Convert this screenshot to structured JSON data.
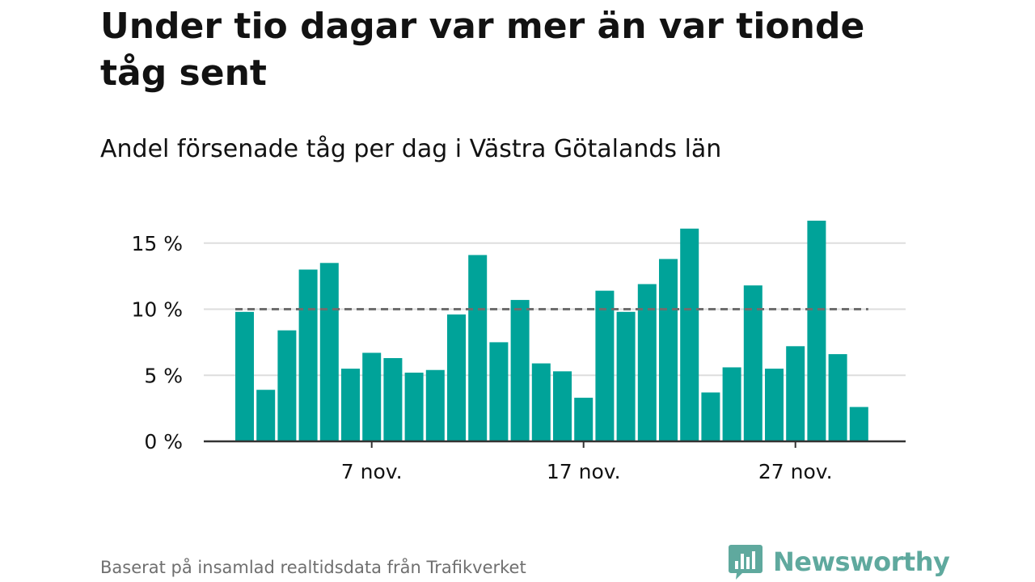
{
  "title": "Under tio dagar var mer än var tionde tåg sent",
  "subtitle": "Andel försenade tåg per dag i Västra Götalands län",
  "footer": {
    "source": "Baserat på insamlad realtidsdata från Trafikverket",
    "brand": "Newsworthy",
    "brand_icon": "bar-chart-speech-bubble-icon"
  },
  "colors": {
    "bar": "#00a399",
    "reference_line": "#6e6e6e",
    "grid": "#dddddd",
    "axis": "#333333",
    "text": "#121212",
    "muted": "#6f6f6f",
    "brand": "#5fa99e"
  },
  "chart_data": {
    "type": "bar",
    "x": [
      "1 nov.",
      "2 nov.",
      "3 nov.",
      "4 nov.",
      "5 nov.",
      "6 nov.",
      "7 nov.",
      "8 nov.",
      "9 nov.",
      "10 nov.",
      "11 nov.",
      "12 nov.",
      "13 nov.",
      "14 nov.",
      "15 nov.",
      "16 nov.",
      "17 nov.",
      "18 nov.",
      "19 nov.",
      "20 nov.",
      "21 nov.",
      "22 nov.",
      "23 nov.",
      "24 nov.",
      "25 nov.",
      "26 nov.",
      "27 nov.",
      "28 nov.",
      "29 nov.",
      "30 nov."
    ],
    "values": [
      9.8,
      3.9,
      8.4,
      13.0,
      13.5,
      5.5,
      6.7,
      6.3,
      5.2,
      5.4,
      9.6,
      14.1,
      7.5,
      10.7,
      5.9,
      5.3,
      3.3,
      11.4,
      9.8,
      11.9,
      13.8,
      16.1,
      3.7,
      5.6,
      11.8,
      5.5,
      7.2,
      16.7,
      6.6,
      2.6
    ],
    "xticks": [
      "7 nov.",
      "17 nov.",
      "27 nov."
    ],
    "yticks": [
      {
        "value": 0,
        "label": "0 %"
      },
      {
        "value": 5,
        "label": "5 %"
      },
      {
        "value": 10,
        "label": "10 %"
      },
      {
        "value": 15,
        "label": "15 %"
      }
    ],
    "ylim": [
      0,
      16.7
    ],
    "reference_line": 10,
    "grid": true,
    "xlabel": "",
    "ylabel": ""
  }
}
